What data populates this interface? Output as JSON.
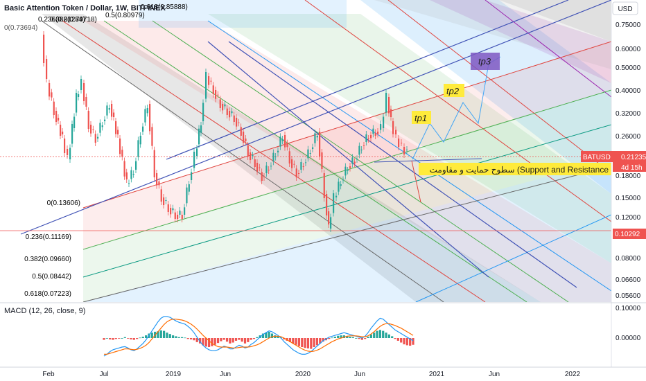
{
  "header": {
    "symbol_title": "Basic Attention Token / Dollar, 1W, BITFINEX",
    "fib_top_label": "0(0.73694)"
  },
  "price_axis": {
    "currency_button": "USD",
    "ticks": [
      "0.75000",
      "0.60000",
      "0.50000",
      "0.40000",
      "0.32000",
      "0.26000",
      "0.18000",
      "0.15000",
      "0.12000",
      "0.08000",
      "0.06600",
      "0.05600"
    ],
    "symbol_tag": "BATUSD",
    "current_price": "0.21235",
    "countdown": "4d 15h",
    "line_price": "0.10292",
    "colors": {
      "up": "#26a69a",
      "down": "#ef5350",
      "line_price": "#ef5350"
    }
  },
  "time_axis": {
    "ticks": [
      "Feb",
      "Jul",
      "2019",
      "Jun",
      "2020",
      "Jun",
      "2021",
      "Jun",
      "2022"
    ]
  },
  "fib_levels": [
    {
      "label": "0.236(0.81284)",
      "color": "#e0443e"
    },
    {
      "label": "0.382(0.79718)",
      "color": "#4caf50"
    },
    {
      "label": "0.5(0.80979)",
      "color": "#666666"
    },
    {
      "label": "0.618(0.85888)",
      "color": "#2196f3"
    },
    {
      "label": "0(0.13606)",
      "color": "#666666"
    },
    {
      "label": "0.236(0.11169)",
      "color": "#e0443e"
    },
    {
      "label": "0.382(0.09660)",
      "color": "#4caf50"
    },
    {
      "label": "0.5(0.08442)",
      "color": "#4caf50"
    },
    {
      "label": "0.618(0.07223)",
      "color": "#089981"
    }
  ],
  "annotations": {
    "tp1": "tp1",
    "tp2": "tp2",
    "tp3": "tp3",
    "support_text": "سطوح حمایت و مقاومت (Support and Resistance"
  },
  "macd": {
    "title": "MACD (12, 26, close, 9)",
    "axis_ticks": [
      "0.10000",
      "0.00000"
    ],
    "histogram": [
      -0.004,
      0.0,
      -0.003,
      -0.004,
      -0.002,
      -0.001,
      0.0,
      0.002,
      -0.001,
      -0.003,
      -0.004,
      -0.002,
      0.001,
      0.003,
      0.006,
      0.01,
      0.012,
      0.014,
      0.015,
      0.017,
      0.016,
      0.012,
      0.009,
      0.006,
      0.004,
      0.002,
      0.002,
      0.001,
      -0.002,
      -0.003,
      -0.005,
      -0.009,
      -0.012,
      -0.016,
      -0.019,
      -0.02,
      -0.018,
      -0.015,
      -0.011,
      -0.007,
      -0.004,
      -0.008,
      -0.012,
      -0.01,
      -0.006,
      -0.004,
      -0.008,
      -0.012,
      -0.009,
      -0.004,
      -0.002,
      0.002,
      0.006,
      0.01,
      0.012,
      0.014,
      0.01,
      0.006,
      0.004,
      0.001,
      -0.003,
      -0.006,
      -0.009,
      -0.012,
      -0.015,
      -0.018,
      -0.02,
      -0.022,
      -0.023,
      -0.024,
      -0.02,
      -0.016,
      -0.012,
      -0.008,
      -0.005,
      -0.002,
      0.001,
      0.003,
      0.005,
      0.006,
      0.006,
      0.004,
      0.003,
      0.002,
      0.0,
      -0.002,
      -0.004,
      -0.002,
      0.003,
      0.008,
      0.012,
      0.016,
      0.018,
      0.016,
      0.012,
      0.008,
      0.004,
      -0.002,
      -0.006,
      -0.01,
      -0.014,
      -0.016,
      -0.017,
      -0.015
    ],
    "macd_line": [
      -0.04,
      -0.036,
      -0.03,
      -0.026,
      -0.024,
      -0.022,
      -0.02,
      -0.019,
      -0.022,
      -0.026,
      -0.028,
      -0.024,
      -0.018,
      -0.012,
      -0.004,
      0.006,
      0.016,
      0.026,
      0.036,
      0.044,
      0.048,
      0.048,
      0.046,
      0.042,
      0.038,
      0.035,
      0.033,
      0.031,
      0.026,
      0.02,
      0.012,
      0.002,
      -0.008,
      -0.016,
      -0.022,
      -0.026,
      -0.028,
      -0.028,
      -0.026,
      -0.022,
      -0.018,
      -0.02,
      -0.024,
      -0.024,
      -0.02,
      -0.016,
      -0.018,
      -0.022,
      -0.02,
      -0.014,
      -0.01,
      -0.004,
      0.002,
      0.008,
      0.012,
      0.016,
      0.014,
      0.01,
      0.006,
      0.0,
      -0.008,
      -0.014,
      -0.02,
      -0.026,
      -0.03,
      -0.034,
      -0.036,
      -0.036,
      -0.034,
      -0.03,
      -0.024,
      -0.018,
      -0.012,
      -0.006,
      -0.002,
      0.002,
      0.004,
      0.006,
      0.008,
      0.01,
      0.012,
      0.01,
      0.008,
      0.006,
      0.004,
      0.002,
      0.0,
      0.004,
      0.012,
      0.022,
      0.03,
      0.038,
      0.044,
      0.042,
      0.036,
      0.03,
      0.024,
      0.018,
      0.014,
      0.01,
      0.006,
      0.002,
      -0.002,
      -0.006
    ],
    "signal_line": [
      -0.036,
      -0.036,
      -0.034,
      -0.032,
      -0.03,
      -0.028,
      -0.026,
      -0.024,
      -0.024,
      -0.025,
      -0.026,
      -0.025,
      -0.023,
      -0.02,
      -0.016,
      -0.01,
      -0.002,
      0.006,
      0.014,
      0.022,
      0.03,
      0.036,
      0.04,
      0.042,
      0.042,
      0.041,
      0.04,
      0.038,
      0.035,
      0.031,
      0.026,
      0.02,
      0.013,
      0.006,
      0.0,
      -0.006,
      -0.012,
      -0.016,
      -0.019,
      -0.02,
      -0.02,
      -0.02,
      -0.021,
      -0.022,
      -0.022,
      -0.021,
      -0.02,
      -0.02,
      -0.02,
      -0.019,
      -0.017,
      -0.015,
      -0.012,
      -0.008,
      -0.004,
      0.0,
      0.003,
      0.004,
      0.004,
      0.003,
      0.0,
      -0.004,
      -0.008,
      -0.012,
      -0.016,
      -0.02,
      -0.024,
      -0.027,
      -0.029,
      -0.03,
      -0.029,
      -0.027,
      -0.024,
      -0.02,
      -0.016,
      -0.012,
      -0.008,
      -0.005,
      -0.002,
      0.0,
      0.002,
      0.004,
      0.005,
      0.005,
      0.005,
      0.004,
      0.003,
      0.003,
      0.005,
      0.009,
      0.014,
      0.02,
      0.026,
      0.03,
      0.032,
      0.032,
      0.03,
      0.028,
      0.025,
      0.022,
      0.018,
      0.014,
      0.01,
      0.006
    ],
    "colors": {
      "macd": "#2196f3",
      "signal": "#ff6d00",
      "hist_up": "#26a69a",
      "hist_down": "#ef5350"
    }
  }
}
